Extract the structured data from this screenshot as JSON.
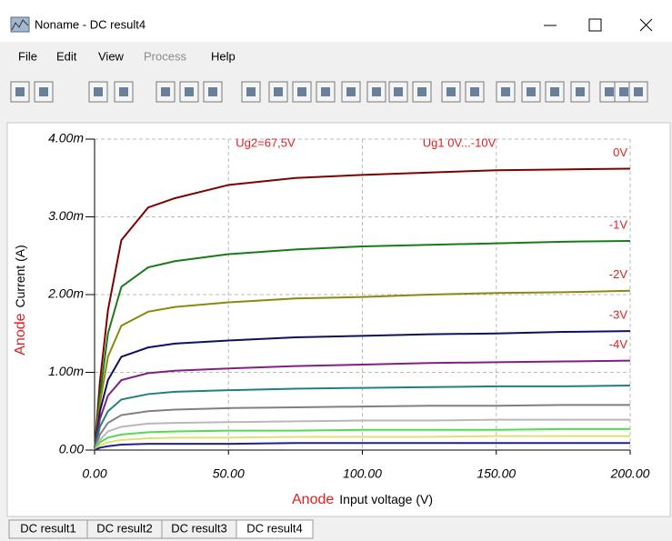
{
  "window": {
    "title": "Noname - DC result4",
    "menu": [
      "File",
      "Edit",
      "View",
      "Process",
      "Help"
    ],
    "tabs": [
      "DC result1",
      "DC result2",
      "DC result3",
      "DC result4"
    ]
  },
  "chart_data": {
    "type": "line",
    "annotations": [
      "Ug2=67,5V",
      "Ug1 0V...-10V"
    ],
    "xlabel_prefix": "Anode",
    "xlabel": "Input voltage (V)",
    "ylabel_prefix": "Anode",
    "ylabel": "Current (A)",
    "xlim": [
      0,
      200
    ],
    "xticks": [
      {
        "value": 0,
        "label": "0.00"
      },
      {
        "value": 50,
        "label": "50.00"
      },
      {
        "value": 100,
        "label": "100.00"
      },
      {
        "value": 150,
        "label": "150.00"
      },
      {
        "value": 200,
        "label": "200.00"
      }
    ],
    "ylim": [
      0,
      0.004
    ],
    "yticks": [
      {
        "value": 0,
        "label": "0.00"
      },
      {
        "value": 0.001,
        "label": "1.00m"
      },
      {
        "value": 0.002,
        "label": "2.00m"
      },
      {
        "value": 0.003,
        "label": "3.00m"
      },
      {
        "value": 0.004,
        "label": "4.00m"
      }
    ],
    "grid": true,
    "x": [
      0,
      2,
      5,
      10,
      20,
      30,
      50,
      75,
      100,
      125,
      150,
      175,
      200
    ],
    "series": [
      {
        "name": "0V",
        "color": "#800000",
        "values": [
          0,
          0.00088,
          0.0018,
          0.0027,
          0.00312,
          0.00324,
          0.00341,
          0.0035,
          0.00354,
          0.00357,
          0.0036,
          0.00361,
          0.00362
        ]
      },
      {
        "name": "-1V",
        "color": "#1a7a1a",
        "values": [
          0,
          0.0007,
          0.0015,
          0.0021,
          0.00235,
          0.00243,
          0.00252,
          0.00258,
          0.00262,
          0.00264,
          0.00266,
          0.00268,
          0.00269
        ]
      },
      {
        "name": "-2V",
        "color": "#8a8a10",
        "values": [
          0,
          0.0006,
          0.0012,
          0.0016,
          0.00178,
          0.00184,
          0.0019,
          0.00195,
          0.00197,
          0.002,
          0.00202,
          0.00203,
          0.00205
        ]
      },
      {
        "name": "-3V",
        "color": "#101060",
        "values": [
          0,
          0.0005,
          0.0009,
          0.0012,
          0.00132,
          0.00137,
          0.00141,
          0.00145,
          0.00147,
          0.00149,
          0.0015,
          0.00152,
          0.00153
        ]
      },
      {
        "name": "-4V",
        "color": "#802080",
        "values": [
          0,
          0.0004,
          0.0007,
          0.0009,
          0.00099,
          0.00102,
          0.00105,
          0.00108,
          0.0011,
          0.00112,
          0.00113,
          0.00114,
          0.00115
        ]
      },
      {
        "color": "#208080",
        "values": [
          0,
          0.0003,
          0.0005,
          0.00065,
          0.00072,
          0.00075,
          0.00077,
          0.00079,
          0.0008,
          0.00081,
          0.00082,
          0.00082,
          0.00083
        ]
      },
      {
        "color": "#808080",
        "values": [
          0,
          0.0002,
          0.00035,
          0.00045,
          0.0005,
          0.00052,
          0.00054,
          0.00055,
          0.00056,
          0.00057,
          0.00057,
          0.00058,
          0.00058
        ]
      },
      {
        "color": "#b8b8b8",
        "values": [
          0,
          0.00013,
          0.00024,
          0.0003,
          0.00034,
          0.00035,
          0.00036,
          0.00037,
          0.00038,
          0.00038,
          0.00039,
          0.00039,
          0.00039
        ]
      },
      {
        "color": "#50dd50",
        "values": [
          0,
          0.0001,
          0.00016,
          0.0002,
          0.00023,
          0.00024,
          0.00025,
          0.00025,
          0.00026,
          0.00026,
          0.00026,
          0.00027,
          0.00027
        ]
      },
      {
        "color": "#e0e070",
        "values": [
          0,
          6e-05,
          0.0001,
          0.00013,
          0.00015,
          0.00016,
          0.00016,
          0.00017,
          0.00017,
          0.00017,
          0.00018,
          0.00018,
          0.00018
        ]
      },
      {
        "color": "#20208a",
        "values": [
          0,
          3e-05,
          5e-05,
          7e-05,
          8e-05,
          8e-05,
          8e-05,
          9e-05,
          9e-05,
          9e-05,
          9e-05,
          9e-05,
          9e-05
        ]
      }
    ],
    "label_color": "#e02020"
  }
}
